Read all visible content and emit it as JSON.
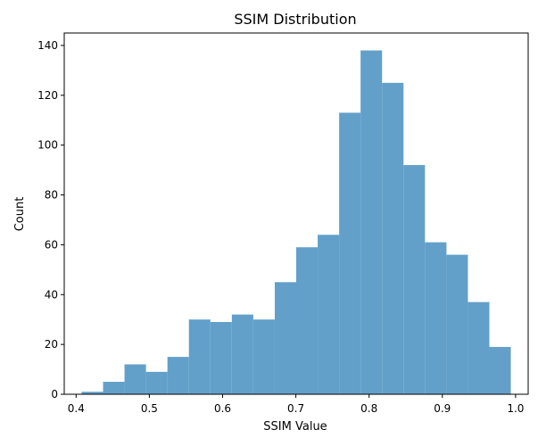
{
  "chart_data": {
    "type": "bar",
    "title": "SSIM Distribution",
    "xlabel": "SSIM Value",
    "ylabel": "Count",
    "bar_color": "#62a0ca",
    "bins": [
      {
        "start": 0.4075,
        "end": 0.4368,
        "count": 1
      },
      {
        "start": 0.4368,
        "end": 0.4661,
        "count": 5
      },
      {
        "start": 0.4661,
        "end": 0.4954,
        "count": 12
      },
      {
        "start": 0.4954,
        "end": 0.5247,
        "count": 9
      },
      {
        "start": 0.5247,
        "end": 0.554,
        "count": 15
      },
      {
        "start": 0.554,
        "end": 0.5833,
        "count": 30
      },
      {
        "start": 0.5833,
        "end": 0.6126,
        "count": 29
      },
      {
        "start": 0.6126,
        "end": 0.6419,
        "count": 32
      },
      {
        "start": 0.6419,
        "end": 0.6712,
        "count": 30
      },
      {
        "start": 0.6712,
        "end": 0.7005,
        "count": 45
      },
      {
        "start": 0.7005,
        "end": 0.7298,
        "count": 59
      },
      {
        "start": 0.7298,
        "end": 0.7591,
        "count": 64
      },
      {
        "start": 0.7591,
        "end": 0.7884,
        "count": 113
      },
      {
        "start": 0.7884,
        "end": 0.8177,
        "count": 138
      },
      {
        "start": 0.8177,
        "end": 0.847,
        "count": 125
      },
      {
        "start": 0.847,
        "end": 0.8763,
        "count": 92
      },
      {
        "start": 0.8763,
        "end": 0.9056,
        "count": 61
      },
      {
        "start": 0.9056,
        "end": 0.9349,
        "count": 56
      },
      {
        "start": 0.9349,
        "end": 0.9642,
        "count": 37
      },
      {
        "start": 0.9642,
        "end": 0.9935,
        "count": 19
      }
    ],
    "xlim": [
      0.3838,
      1.0172
    ],
    "ylim": [
      0,
      145
    ],
    "xticks": [
      0.4,
      0.5,
      0.6,
      0.7,
      0.8,
      0.9,
      1.0
    ],
    "xtick_labels": [
      "0.4",
      "0.5",
      "0.6",
      "0.7",
      "0.8",
      "0.9",
      "1.0"
    ],
    "yticks": [
      0,
      20,
      40,
      60,
      80,
      100,
      120,
      140
    ],
    "ytick_labels": [
      "0",
      "20",
      "40",
      "60",
      "80",
      "100",
      "120",
      "140"
    ],
    "grid": false,
    "legend": "none"
  }
}
